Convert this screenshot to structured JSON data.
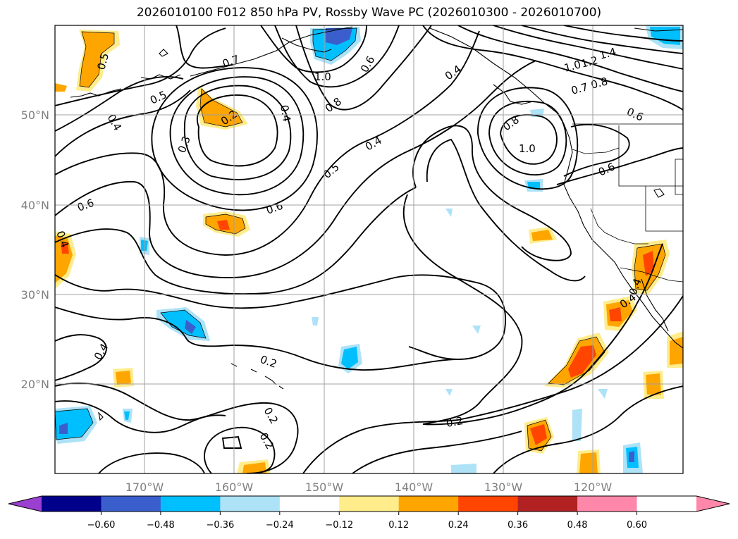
{
  "title": "2026010100 F012 850 hPa PV, Rossby Wave PC (2026010300 - 2026010700)",
  "map": {
    "lat_labels": [
      "50°N",
      "40°N",
      "30°N",
      "20°N"
    ],
    "lon_labels": [
      "170°W",
      "160°W",
      "150°W",
      "140°W",
      "130°W",
      "120°W"
    ]
  },
  "contour_labels": [
    "0.5",
    "0.7",
    "1.0",
    "0.6",
    "0.4",
    "1.4",
    "1.2",
    "1.0",
    "0.7",
    "0.8",
    "0.6",
    "0.5",
    "0.4",
    "0.2",
    "0.3",
    "0.4",
    "0.8",
    "0.8",
    "1.0",
    "0.6",
    "0.4",
    "0.5",
    "0.6",
    "0.6",
    "0.4",
    "0.4",
    "0.2",
    "0.2",
    "0.2",
    "0.2",
    "0.4",
    "0.4"
  ],
  "colorbar": {
    "ticks": [
      "−0.60",
      "−0.48",
      "−0.36",
      "−0.24",
      "−0.12",
      "0.12",
      "0.24",
      "0.36",
      "0.48",
      "0.60"
    ],
    "colors": {
      "under": "#9a3fd0",
      "bins": [
        "#9a3fd0",
        "#00008b",
        "#3a5fcd",
        "#00bfff",
        "#ade2f7",
        "#ffffff",
        "#ffec8b",
        "#ffa500",
        "#ff4500",
        "#b22222",
        "#ff88aa"
      ],
      "over": "#ff88aa"
    }
  }
}
